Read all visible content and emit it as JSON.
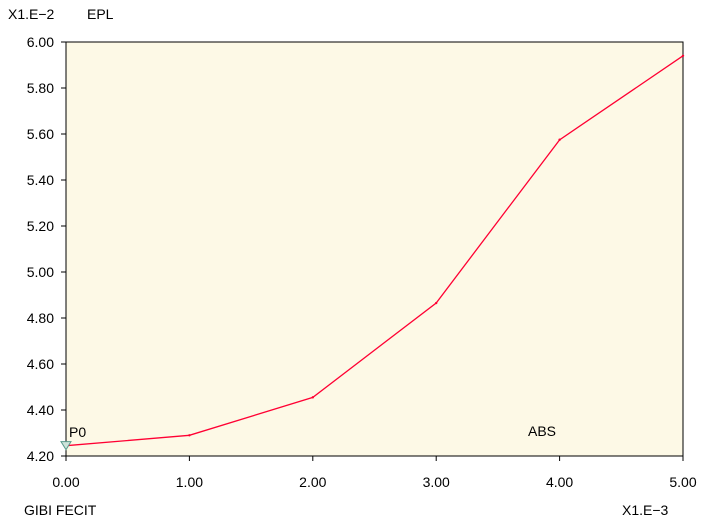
{
  "chart_data": {
    "type": "line",
    "y_scale_label": "X1.E−2",
    "y_title": "EPL",
    "x_scale_label": "X1.E−3",
    "footer": "GIBI FECIT",
    "curve_label": "ABS",
    "marker_label": "P0",
    "xlim": [
      0,
      5
    ],
    "ylim": [
      4.2,
      6.0
    ],
    "x_ticks": [
      "0.00",
      "1.00",
      "2.00",
      "3.00",
      "4.00",
      "5.00"
    ],
    "y_ticks": [
      "4.20",
      "4.40",
      "4.60",
      "4.80",
      "5.00",
      "5.20",
      "5.40",
      "5.60",
      "5.80",
      "6.00"
    ],
    "series": [
      {
        "x": [
          0,
          1,
          2,
          3,
          4,
          5
        ],
        "y": [
          4.245,
          4.29,
          4.455,
          4.865,
          5.575,
          5.94
        ]
      }
    ],
    "colors": {
      "plot_bg": "#fdf9e6",
      "line": "#ff0033",
      "marker": "#5a9a8c"
    }
  }
}
